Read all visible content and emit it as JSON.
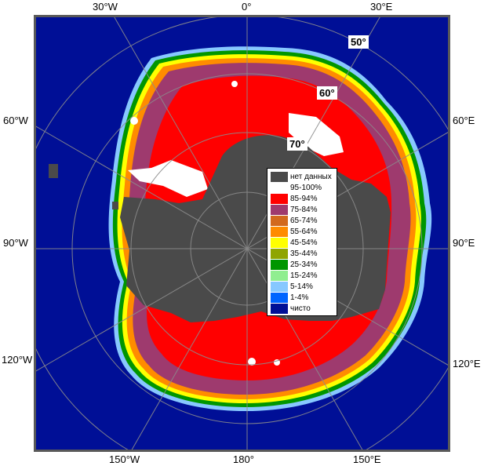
{
  "map": {
    "colors": {
      "open_water": "#000f96",
      "no_data": "#4a4a4a",
      "land": "#595959",
      "frame": "#595959"
    },
    "longitude_labels": {
      "top": [
        "30°W",
        "0°",
        "30°E"
      ],
      "left": [
        "60°W",
        "90°W",
        "120°W"
      ],
      "right": [
        "60°E",
        "90°E",
        "120°E"
      ],
      "bottom": [
        "150°W",
        "180°",
        "150°E"
      ]
    },
    "latitude_labels": [
      "50°",
      "60°",
      "70°"
    ]
  },
  "legend": {
    "items": [
      {
        "label": "нет данных",
        "color": "#4a4a4a"
      },
      {
        "label": "95-100%",
        "color": "#ffffff"
      },
      {
        "label": "85-94%",
        "color": "#ff0000"
      },
      {
        "label": "75-84%",
        "color": "#9e3a6e"
      },
      {
        "label": "65-74%",
        "color": "#d2691e"
      },
      {
        "label": "55-64%",
        "color": "#ff8c00"
      },
      {
        "label": "45-54%",
        "color": "#ffff00"
      },
      {
        "label": "35-44%",
        "color": "#8fa500"
      },
      {
        "label": "25-34%",
        "color": "#009600"
      },
      {
        "label": "15-24%",
        "color": "#90ee90"
      },
      {
        "label": "5-14%",
        "color": "#87c8ff"
      },
      {
        "label": "1-4%",
        "color": "#0064ff"
      },
      {
        "label": "чисто",
        "color": "#000f96"
      }
    ]
  }
}
